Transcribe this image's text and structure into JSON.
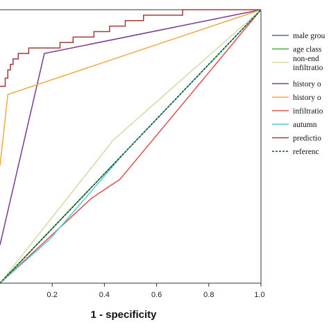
{
  "chart_data": {
    "type": "line",
    "title": "",
    "xlabel": "1 - specificity",
    "ylabel": "",
    "xlim": [
      0,
      1
    ],
    "ylim": [
      0,
      1
    ],
    "xticks": [
      "0.2",
      "0.4",
      "0.6",
      "0.8",
      "1.0"
    ],
    "grid": false,
    "legend_position": "right",
    "series": [
      {
        "name": "male grou",
        "color": "#4a6fa5",
        "dash": "solid",
        "points": [
          [
            0.0,
            0.0
          ],
          [
            1.0,
            1.0
          ]
        ]
      },
      {
        "name": "age class",
        "color": "#3fb050",
        "dash": "solid",
        "points": [
          [
            0.0,
            0.0
          ],
          [
            1.0,
            1.0
          ]
        ]
      },
      {
        "name": "non-end infiltratio",
        "color": "#d8d7a6",
        "dash": "solid",
        "points": [
          [
            0.0,
            0.0
          ],
          [
            0.415,
            0.5
          ],
          [
            0.43,
            0.52
          ],
          [
            1.0,
            1.0
          ]
        ]
      },
      {
        "name": "history o",
        "color": "#7a3a93",
        "dash": "solid",
        "points": [
          [
            0.0,
            0.14
          ],
          [
            0.17,
            0.84
          ],
          [
            1.0,
            1.0
          ]
        ]
      },
      {
        "name": "history o",
        "color": "#f0a838",
        "dash": "solid",
        "points": [
          [
            0.0,
            0.43
          ],
          [
            0.03,
            0.69
          ],
          [
            1.0,
            1.0
          ]
        ]
      },
      {
        "name": "infiltratio",
        "color": "#d9534f",
        "dash": "solid",
        "points": [
          [
            0.0,
            0.0
          ],
          [
            0.35,
            0.31
          ],
          [
            0.46,
            0.38
          ],
          [
            1.0,
            1.0
          ]
        ]
      },
      {
        "name": "autumn",
        "color": "#5ac8d8",
        "dash": "solid",
        "points": [
          [
            0.0,
            0.0
          ],
          [
            0.19,
            0.16
          ],
          [
            0.48,
            0.48
          ],
          [
            1.0,
            1.0
          ]
        ]
      },
      {
        "name": "predictio",
        "color": "#a33a3a",
        "dash": "solid",
        "step": true,
        "points": [
          [
            0.0,
            0.72
          ],
          [
            0.02,
            0.75
          ],
          [
            0.03,
            0.78
          ],
          [
            0.04,
            0.8
          ],
          [
            0.05,
            0.82
          ],
          [
            0.07,
            0.84
          ],
          [
            0.11,
            0.86
          ],
          [
            0.23,
            0.88
          ],
          [
            0.28,
            0.9
          ],
          [
            0.36,
            0.92
          ],
          [
            0.42,
            0.94
          ],
          [
            0.48,
            0.96
          ],
          [
            0.55,
            0.98
          ],
          [
            0.7,
            1.0
          ],
          [
            1.0,
            1.0
          ]
        ]
      },
      {
        "name": "referenc",
        "color": "#1a4d1a",
        "dash": "dashed",
        "points": [
          [
            0.0,
            0.0
          ],
          [
            1.0,
            1.0
          ]
        ]
      }
    ]
  }
}
